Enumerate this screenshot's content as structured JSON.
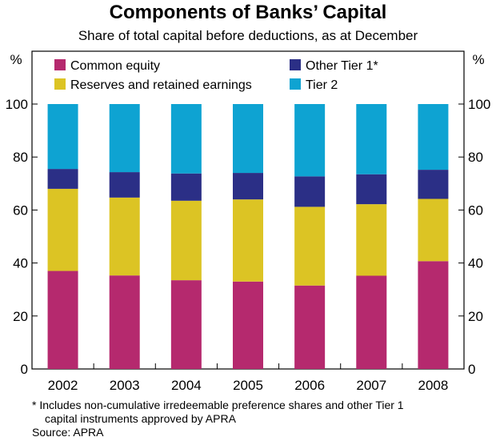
{
  "chart_data": {
    "type": "bar",
    "stacked": true,
    "title": "Components of Banks’ Capital",
    "subtitle": "Share of total capital before deductions, as at December",
    "ylabel_left": "%",
    "ylabel_right": "%",
    "ylim": [
      0,
      100
    ],
    "yticks": [
      "0",
      "20",
      "40",
      "60",
      "80",
      "100"
    ],
    "categories": [
      "2002",
      "2003",
      "2004",
      "2005",
      "2006",
      "2007",
      "2008"
    ],
    "series": [
      {
        "name": "Common equity",
        "color": "#b5296e",
        "values": [
          37,
          35.3,
          33.5,
          33,
          31.5,
          35.2,
          40.7
        ]
      },
      {
        "name": "Reserves and retained earnings",
        "color": "#dcc424",
        "values": [
          31,
          29.4,
          30,
          31,
          29.7,
          27,
          23.5
        ]
      },
      {
        "name": "Other Tier 1*",
        "color": "#2b2f86",
        "values": [
          7.5,
          9.6,
          10.3,
          10,
          11.5,
          11.3,
          11
        ]
      },
      {
        "name": "Tier 2",
        "color": "#0ea3d2",
        "values": [
          24.5,
          25.7,
          26.2,
          26,
          27.3,
          26.5,
          24.8
        ]
      }
    ],
    "legend_position": "top"
  },
  "footnote_line1": "*   Includes non-cumulative irredeemable preference shares and other Tier 1",
  "footnote_line2": "capital instruments approved by APRA",
  "source": "Source: APRA"
}
